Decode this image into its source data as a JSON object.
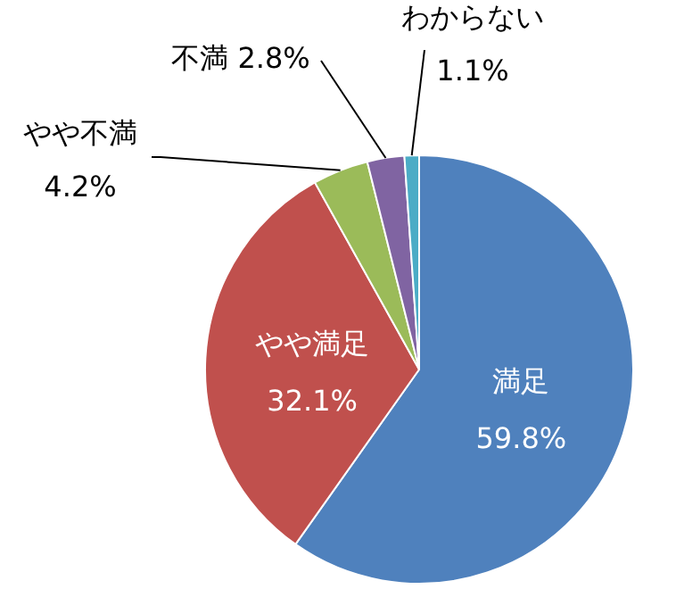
{
  "chart_data": {
    "type": "pie",
    "categories": [
      "満足",
      "やや満足",
      "やや不満",
      "不満",
      "わからない"
    ],
    "values": [
      59.8,
      32.1,
      4.2,
      2.8,
      1.1
    ],
    "colors": [
      "#4f81bd",
      "#c0504d",
      "#9bbb59",
      "#8064a2",
      "#4bacc6"
    ],
    "value_labels": [
      "59.8%",
      "32.1%",
      "4.2%",
      "2.8%",
      "1.1%"
    ]
  }
}
